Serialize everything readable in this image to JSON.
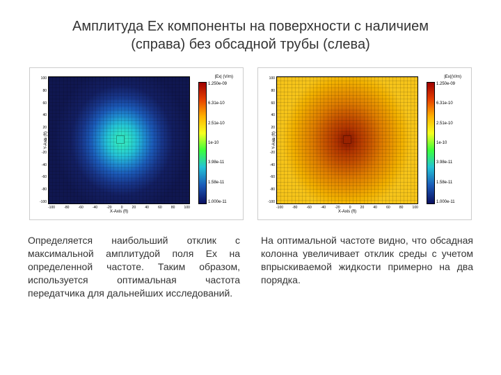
{
  "title_line1": "Амплитуда Ex компоненты на поверхности с наличием",
  "title_line2": "(справа) без обсадной трубы (слева)",
  "plots": {
    "left": {
      "type": "heatmap",
      "background_css": "radial-gradient(ellipse 48% 58% at 52% 50%, #3feec0 0%, #2fe0c5 10%, #24c3d6 22%, #1f8bd0 34%, #1b5ab8 46%, #18368a 60%, #131f62 75%, #101750 100%)",
      "center_marker_bg": "#2fe0c5",
      "xlabel": "X-Axis (ft)",
      "ylabel": "Y-Axis (ft)",
      "xticks": [
        "-100",
        "-80",
        "-60",
        "-40",
        "-20",
        "0",
        "20",
        "40",
        "60",
        "80",
        "100"
      ],
      "yticks": [
        "-100",
        "-80",
        "-60",
        "-40",
        "-20",
        "0",
        "20",
        "40",
        "60",
        "80",
        "100"
      ],
      "cb_title": "|Ex| (V/m)",
      "cb_ticks": [
        "1.250e-09",
        "6.31e-10",
        "2.51e-10",
        "1e-10",
        "3.98e-11",
        "1.58e-11",
        "1.000e-11"
      ],
      "cb_gradient": "linear-gradient(to bottom, #9e0000 0%, #e64000 14%, #ffb200 28%, #f5ff1f 42%, #3cff3c 56%, #24c3d6 70%, #1b5ab8 85%, #0a1060 100%)"
    },
    "right": {
      "type": "heatmap",
      "background_css": "radial-gradient(ellipse 46% 56% at 50% 50%, #8a1a00 0%, #9a2200 8%, #b23600 18%, #c04a00 30%, #cf6200 42%, #de7d00 55%, #e89600 70%, #f2b100 85%, #f6c41a 100%)",
      "center_marker_bg": "#9a2200",
      "xlabel": "X-Axis (ft)",
      "ylabel": "Y-Axis (ft)",
      "xticks": [
        "-100",
        "-80",
        "-60",
        "-40",
        "-20",
        "0",
        "20",
        "40",
        "60",
        "80",
        "100"
      ],
      "yticks": [
        "-100",
        "-80",
        "-60",
        "-40",
        "-20",
        "0",
        "20",
        "40",
        "60",
        "80",
        "100"
      ],
      "cb_title": "|Ex|(V/m)",
      "cb_ticks": [
        "1.250e-09",
        "6.31e-10",
        "2.51e-10",
        "1e-10",
        "3.98e-11",
        "1.58e-11",
        "1.000e-11"
      ],
      "cb_gradient": "linear-gradient(to bottom, #9e0000 0%, #e64000 14%, #ffb200 28%, #f5ff1f 42%, #3cff3c 56%, #24c3d6 70%, #1b5ab8 85%, #0a1060 100%)"
    }
  },
  "text_left": "Определяется наибольший отклик с максимальной амплитудой поля Ex на определенной частоте. Таким образом, используется оптимальная частота передатчика для дальнейших исследований.",
  "text_right": "На оптимальной частоте видно, что обсадная колонна увеличивает отклик среды с учетом впрыскиваемой жидкости примерно на два порядка.",
  "colors": {
    "text": "#333333",
    "panel_border": "#cccccc"
  }
}
